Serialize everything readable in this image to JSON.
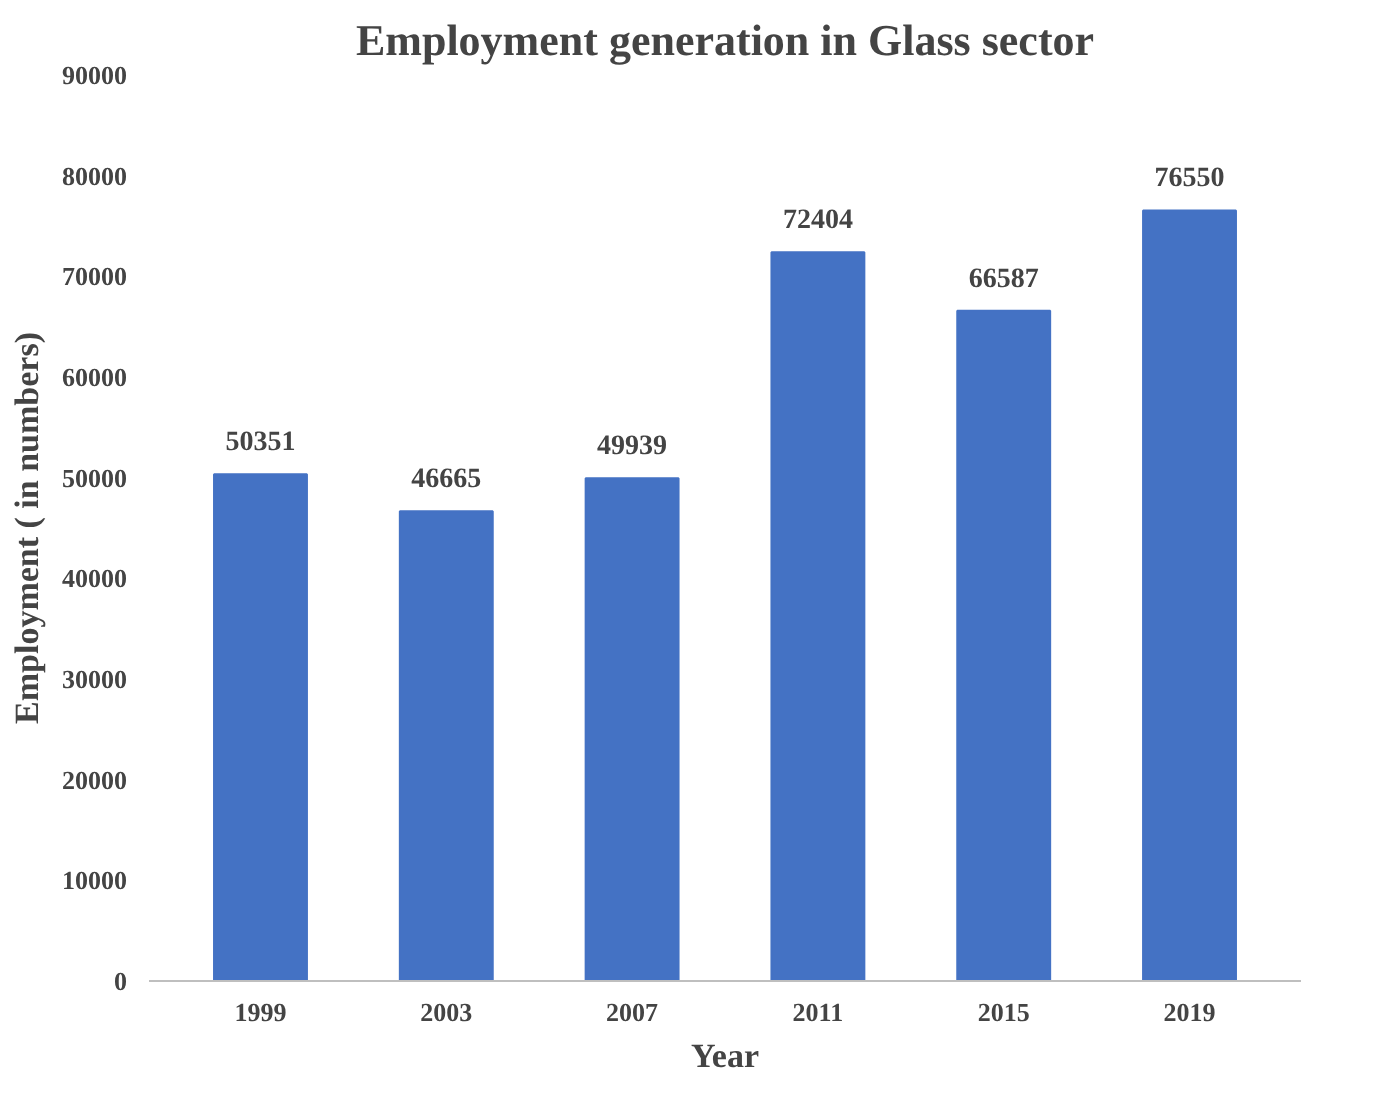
{
  "chart_data": {
    "type": "bar",
    "title": "Employment generation in Glass sector",
    "xlabel": "Year",
    "ylabel": "Employment ( in numbers)",
    "categories": [
      "1999",
      "2003",
      "2007",
      "2011",
      "2015",
      "2019"
    ],
    "values": [
      50351,
      46665,
      49939,
      72404,
      66587,
      76550
    ],
    "color": "#4472c4",
    "ylim": [
      0,
      90000
    ],
    "yticks": [
      0,
      10000,
      20000,
      30000,
      40000,
      50000,
      60000,
      70000,
      80000,
      90000
    ],
    "grid": false,
    "data_labels": true
  }
}
